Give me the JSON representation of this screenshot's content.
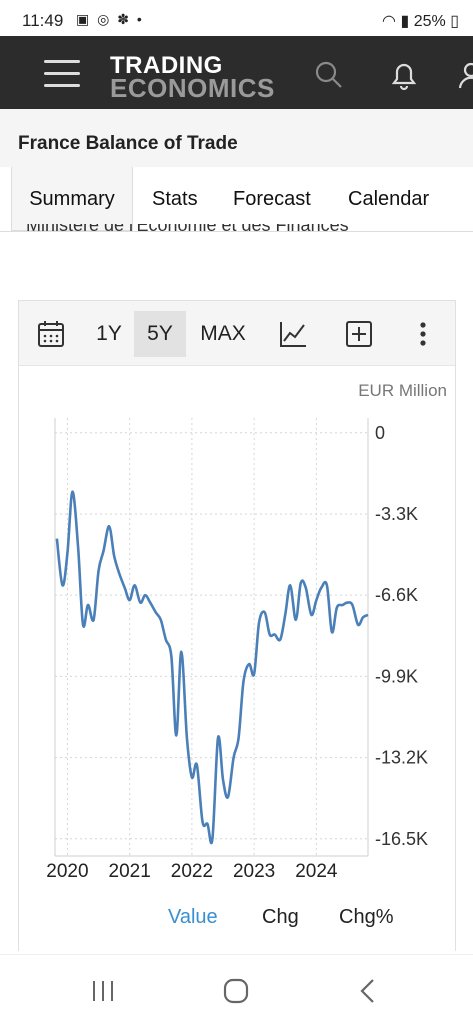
{
  "status_bar": {
    "time": "11:49",
    "battery": "25%"
  },
  "app_bar": {
    "brand_line1": "TRADING",
    "brand_line2": "ECONOMICS"
  },
  "page": {
    "title": "France Balance of Trade",
    "source_text": "Ministère de l'Économie et des Finances"
  },
  "tabs": [
    {
      "label": "Summary",
      "active": true
    },
    {
      "label": "Stats"
    },
    {
      "label": "Forecast"
    },
    {
      "label": "Calendar"
    }
  ],
  "toolbar": {
    "range_1y": "1Y",
    "range_5y": "5Y",
    "range_max": "MAX",
    "selected_range": "5Y"
  },
  "legend": {
    "value": "Value",
    "chg": "Chg",
    "chg_pct": "Chg%",
    "active": "Value"
  },
  "colors": {
    "series": "#4a7fb8",
    "active_legend": "#3a8fd0",
    "app_bar": "#2c2c2c"
  },
  "chart_data": {
    "type": "line",
    "unit_label": "EUR Million",
    "y_ticks": [
      "0",
      "-3.3K",
      "-6.6K",
      "-9.9K",
      "-13.2K",
      "-16.5K"
    ],
    "y_tick_values": [
      0,
      -3300,
      -6600,
      -9900,
      -13200,
      -16500
    ],
    "x_ticks": [
      "2020",
      "2021",
      "2022",
      "2023",
      "2024"
    ],
    "x_tick_values": [
      2020.0,
      2021.0,
      2022.0,
      2023.0,
      2024.0
    ],
    "ylim": [
      -17200,
      600
    ],
    "xlim": [
      2019.8,
      2024.83
    ],
    "grid": true,
    "series": [
      {
        "x": [
          2019.83,
          2019.92,
          2020.0,
          2020.08,
          2020.17,
          2020.25,
          2020.33,
          2020.42,
          2020.5,
          2020.58,
          2020.67,
          2020.75,
          2020.83,
          2020.92,
          2021.0,
          2021.08,
          2021.17,
          2021.25,
          2021.33,
          2021.42,
          2021.5,
          2021.58,
          2021.67,
          2021.75,
          2021.83,
          2021.92,
          2022.0,
          2022.08,
          2022.17,
          2022.25,
          2022.33,
          2022.42,
          2022.5,
          2022.58,
          2022.67,
          2022.75,
          2022.83,
          2022.92,
          2023.0,
          2023.08,
          2023.17,
          2023.25,
          2023.33,
          2023.42,
          2023.5,
          2023.58,
          2023.67,
          2023.75,
          2023.83,
          2023.92,
          2024.0,
          2024.08,
          2024.17,
          2024.25,
          2024.33,
          2024.42,
          2024.5,
          2024.58,
          2024.67,
          2024.75,
          2024.83
        ],
        "values": [
          -4300,
          -6200,
          -4900,
          -2400,
          -4600,
          -7800,
          -7000,
          -7600,
          -5600,
          -4800,
          -3800,
          -5000,
          -5700,
          -6300,
          -6800,
          -6200,
          -6900,
          -6600,
          -6900,
          -7300,
          -7600,
          -8400,
          -9100,
          -12300,
          -8900,
          -12400,
          -14000,
          -13500,
          -15800,
          -15900,
          -16500,
          -12400,
          -14100,
          -14800,
          -13200,
          -12400,
          -10100,
          -9400,
          -9800,
          -7700,
          -7300,
          -8200,
          -8200,
          -8400,
          -7400,
          -6200,
          -7600,
          -6100,
          -6300,
          -7400,
          -6800,
          -6300,
          -6200,
          -8100,
          -7100,
          -7000,
          -6900,
          -7000,
          -7800,
          -7500,
          -7400
        ]
      }
    ]
  }
}
